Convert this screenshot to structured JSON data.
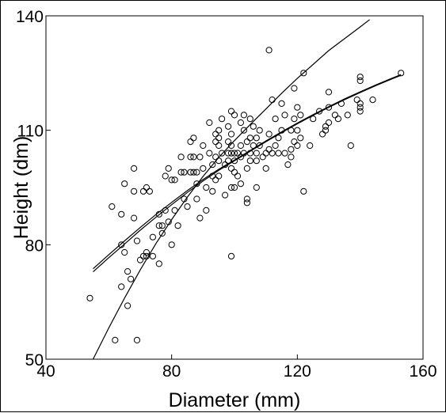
{
  "chart_data": {
    "type": "scatter",
    "title": "",
    "xlabel": "Diameter (mm)",
    "ylabel": "Height (dm)",
    "xlim": [
      40,
      160
    ],
    "ylim": [
      50,
      140
    ],
    "xticks": [
      40,
      80,
      120,
      160
    ],
    "yticks": [
      50,
      80,
      110,
      140
    ],
    "grid": false,
    "legend": "none",
    "colors": {
      "points": "#000000",
      "lines": "#000000",
      "background": "#ffffff"
    },
    "series": [
      {
        "type": "scatter",
        "marker": "open-circle",
        "points": [
          [
            54,
            66
          ],
          [
            61,
            90
          ],
          [
            62,
            55
          ],
          [
            64,
            88
          ],
          [
            64,
            80
          ],
          [
            65,
            96
          ],
          [
            65,
            78
          ],
          [
            64,
            69
          ],
          [
            66,
            73
          ],
          [
            66,
            64
          ],
          [
            67,
            71
          ],
          [
            68,
            94
          ],
          [
            68,
            87
          ],
          [
            68,
            100
          ],
          [
            69,
            81
          ],
          [
            70,
            76
          ],
          [
            69,
            55
          ],
          [
            71,
            94
          ],
          [
            71,
            77
          ],
          [
            72,
            95
          ],
          [
            72,
            78
          ],
          [
            72,
            77
          ],
          [
            73,
            94
          ],
          [
            74,
            82
          ],
          [
            74,
            77
          ],
          [
            76,
            88
          ],
          [
            76,
            85
          ],
          [
            76,
            75
          ],
          [
            77,
            83
          ],
          [
            77,
            85
          ],
          [
            78,
            98
          ],
          [
            79,
            100
          ],
          [
            78,
            89
          ],
          [
            80,
            97
          ],
          [
            79,
            86
          ],
          [
            80,
            80
          ],
          [
            81,
            97
          ],
          [
            81,
            89
          ],
          [
            82,
            85
          ],
          [
            83,
            99
          ],
          [
            83,
            103
          ],
          [
            84,
            99
          ],
          [
            84,
            92
          ],
          [
            85,
            90
          ],
          [
            86,
            107
          ],
          [
            86,
            103
          ],
          [
            86,
            99
          ],
          [
            87,
            108
          ],
          [
            87,
            99
          ],
          [
            87,
            103
          ],
          [
            88,
            99
          ],
          [
            88,
            96
          ],
          [
            88,
            92
          ],
          [
            89,
            103
          ],
          [
            89,
            87
          ],
          [
            90,
            106
          ],
          [
            90,
            100
          ],
          [
            91,
            95
          ],
          [
            91,
            89
          ],
          [
            92,
            112
          ],
          [
            92,
            104
          ],
          [
            93,
            98
          ],
          [
            93,
            101
          ],
          [
            93,
            94
          ],
          [
            94,
            109
          ],
          [
            94,
            107
          ],
          [
            94,
            103
          ],
          [
            94,
            97
          ],
          [
            95,
            110
          ],
          [
            95,
            108
          ],
          [
            95,
            106
          ],
          [
            95,
            102
          ],
          [
            95,
            98
          ],
          [
            96,
            113
          ],
          [
            96,
            104
          ],
          [
            97,
            101
          ],
          [
            97,
            93
          ],
          [
            98,
            111
          ],
          [
            98,
            107
          ],
          [
            98,
            104
          ],
          [
            98,
            102
          ],
          [
            99,
            115
          ],
          [
            99,
            109
          ],
          [
            99,
            106
          ],
          [
            99,
            104
          ],
          [
            99,
            100
          ],
          [
            99,
            95
          ],
          [
            99,
            77
          ],
          [
            100,
            114
          ],
          [
            100,
            104
          ],
          [
            100,
            102
          ],
          [
            100,
            99
          ],
          [
            100,
            95
          ],
          [
            101,
            104
          ],
          [
            101,
            98
          ],
          [
            102,
            112
          ],
          [
            102,
            106
          ],
          [
            102,
            103
          ],
          [
            102,
            96
          ],
          [
            103,
            114
          ],
          [
            103,
            110
          ],
          [
            103,
            104
          ],
          [
            104,
            107
          ],
          [
            104,
            100
          ],
          [
            104,
            92
          ],
          [
            104,
            91
          ],
          [
            105,
            113
          ],
          [
            105,
            108
          ],
          [
            105,
            104
          ],
          [
            105,
            102
          ],
          [
            106,
            111
          ],
          [
            106,
            106
          ],
          [
            107,
            108
          ],
          [
            107,
            104
          ],
          [
            107,
            102
          ],
          [
            107,
            95
          ],
          [
            108,
            110
          ],
          [
            108,
            106
          ],
          [
            109,
            103
          ],
          [
            110,
            104
          ],
          [
            110,
            100
          ],
          [
            111,
            109
          ],
          [
            111,
            105
          ],
          [
            111,
            131
          ],
          [
            112,
            104
          ],
          [
            112,
            118
          ],
          [
            113,
            113
          ],
          [
            113,
            106
          ],
          [
            114,
            108
          ],
          [
            114,
            104
          ],
          [
            115,
            110
          ],
          [
            115,
            117
          ],
          [
            116,
            114
          ],
          [
            116,
            104
          ],
          [
            117,
            101
          ],
          [
            118,
            110
          ],
          [
            118,
            105
          ],
          [
            118,
            103
          ],
          [
            119,
            107
          ],
          [
            119,
            113
          ],
          [
            119,
            121
          ],
          [
            120,
            110
          ],
          [
            120,
            106
          ],
          [
            120,
            116
          ],
          [
            121,
            114
          ],
          [
            121,
            108
          ],
          [
            122,
            125
          ],
          [
            122,
            94
          ],
          [
            124,
            106
          ],
          [
            125,
            113
          ],
          [
            127,
            115
          ],
          [
            128,
            109
          ],
          [
            129,
            111
          ],
          [
            129,
            110
          ],
          [
            130,
            116
          ],
          [
            130,
            112
          ],
          [
            130,
            120
          ],
          [
            132,
            114
          ],
          [
            133,
            113
          ],
          [
            134,
            117
          ],
          [
            136,
            114
          ],
          [
            137,
            106
          ],
          [
            139,
            118
          ],
          [
            140,
            124
          ],
          [
            140,
            123
          ],
          [
            140,
            117
          ],
          [
            140,
            116
          ],
          [
            140,
            115
          ],
          [
            144,
            118
          ],
          [
            153,
            125
          ]
        ]
      },
      {
        "type": "line",
        "points": [
          [
            55,
            73.7
          ],
          [
            60,
            77.4
          ],
          [
            65,
            81.0
          ],
          [
            70,
            84.5
          ],
          [
            75,
            87.9
          ],
          [
            80,
            91.1
          ],
          [
            85,
            94.2
          ],
          [
            90,
            97.1
          ],
          [
            95,
            99.8
          ],
          [
            100,
            102.2
          ],
          [
            105,
            104.7
          ],
          [
            110,
            107.2
          ],
          [
            115,
            109.6
          ],
          [
            120,
            111.9
          ],
          [
            125,
            114.1
          ],
          [
            130,
            116.2
          ],
          [
            135,
            118.2
          ],
          [
            140,
            120.1
          ],
          [
            145,
            121.9
          ],
          [
            150,
            123.6
          ],
          [
            153,
            124.6
          ]
        ]
      },
      {
        "type": "line",
        "points": [
          [
            55,
            72.9
          ],
          [
            60,
            76.6
          ],
          [
            65,
            80.2
          ],
          [
            70,
            83.8
          ],
          [
            75,
            87.2
          ],
          [
            80,
            90.5
          ],
          [
            85,
            93.7
          ],
          [
            90,
            96.7
          ],
          [
            95,
            99.5
          ],
          [
            100,
            102.0
          ],
          [
            105,
            104.5
          ],
          [
            110,
            107.0
          ],
          [
            115,
            109.4
          ],
          [
            120,
            111.7
          ],
          [
            125,
            113.9
          ],
          [
            130,
            116.0
          ],
          [
            135,
            118.0
          ],
          [
            140,
            119.9
          ],
          [
            145,
            121.7
          ],
          [
            150,
            123.4
          ],
          [
            153,
            124.4
          ]
        ]
      },
      {
        "type": "line",
        "points": [
          [
            55,
            50.0
          ],
          [
            60,
            58.2
          ],
          [
            65,
            66.0
          ],
          [
            70,
            73.4
          ],
          [
            75,
            80.3
          ],
          [
            80,
            86.6
          ],
          [
            85,
            92.5
          ],
          [
            90,
            97.9
          ],
          [
            95,
            102.9
          ],
          [
            100,
            107.3
          ],
          [
            105,
            111.5
          ],
          [
            110,
            115.6
          ],
          [
            115,
            119.7
          ],
          [
            120,
            123.6
          ],
          [
            130,
            130.9
          ],
          [
            140,
            137.1
          ],
          [
            143,
            139.0
          ]
        ]
      }
    ]
  }
}
